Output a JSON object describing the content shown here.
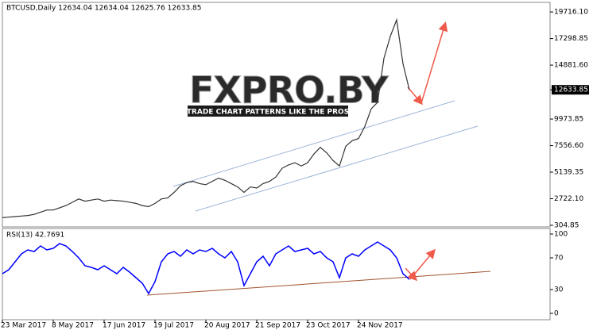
{
  "chart_data": [
    {
      "type": "line",
      "title": "BTCUSD,Daily  12634.04 12634.04 12625.76 12633.85",
      "color": "#333333",
      "values": [
        1000,
        1050,
        1100,
        1150,
        1200,
        1300,
        1500,
        1700,
        1700,
        1900,
        2100,
        2400,
        2700,
        2500,
        2600,
        2700,
        2500,
        2600,
        2550,
        2500,
        2400,
        2300,
        2100,
        2000,
        2300,
        2700,
        2800,
        3300,
        3900,
        4200,
        4300,
        4100,
        4000,
        4300,
        4600,
        4400,
        4100,
        3800,
        3300,
        3800,
        3700,
        4100,
        4300,
        4700,
        5500,
        5800,
        6000,
        5700,
        6000,
        6800,
        7400,
        6900,
        6200,
        5700,
        7500,
        8000,
        8200,
        9300,
        10900,
        11500,
        15500,
        17500,
        19000,
        15000,
        12633.85
      ],
      "ylim": [
        160,
        20590
      ],
      "yticks": [
        {
          "value": 19716.1,
          "label": "19716.10"
        },
        17298.85,
        {
          "value": 14881.6,
          "label": "14881.60"
        },
        12633.85,
        9973.85,
        {
          "value": 7556.6,
          "label": "7556.60"
        },
        5139.35,
        {
          "value": 2722.1,
          "label": "2722.10"
        },
        304.85
      ]
    },
    {
      "type": "line",
      "title": "RSI(13) 42.7691",
      "color": "#0000ff",
      "categories": [
        "23 Mar 2017",
        null,
        null,
        null,
        null,
        null,
        null,
        null,
        "8 May 2017",
        null,
        null,
        null,
        null,
        null,
        null,
        null,
        "17 Jun 2017",
        null,
        null,
        null,
        null,
        null,
        null,
        null,
        "19 Jul 2017",
        null,
        null,
        null,
        null,
        null,
        null,
        null,
        "20 Aug 2017",
        null,
        null,
        null,
        null,
        null,
        null,
        null,
        "21 Sep 2017",
        null,
        null,
        null,
        null,
        null,
        null,
        null,
        "23 Oct 2017",
        null,
        null,
        null,
        null,
        null,
        null,
        null,
        "24 Nov 2017",
        null,
        null,
        null,
        null,
        null,
        null,
        null,
        null
      ],
      "values": [
        50,
        55,
        65,
        75,
        80,
        78,
        85,
        80,
        82,
        88,
        85,
        78,
        70,
        60,
        58,
        55,
        60,
        55,
        50,
        58,
        52,
        45,
        38,
        25,
        40,
        65,
        75,
        78,
        72,
        80,
        75,
        80,
        78,
        82,
        75,
        70,
        78,
        65,
        35,
        50,
        65,
        72,
        60,
        75,
        80,
        85,
        78,
        80,
        82,
        75,
        78,
        70,
        65,
        45,
        70,
        75,
        72,
        80,
        85,
        90,
        85,
        80,
        70,
        50,
        42.7691
      ],
      "ylim": [
        -8,
        107
      ],
      "yticks": [
        100,
        70,
        30,
        0
      ]
    }
  ],
  "watermark": {
    "brand": "FXPRO.BY",
    "tagline": "TRADE CHART PATTERNS LIKE THE PROS"
  }
}
